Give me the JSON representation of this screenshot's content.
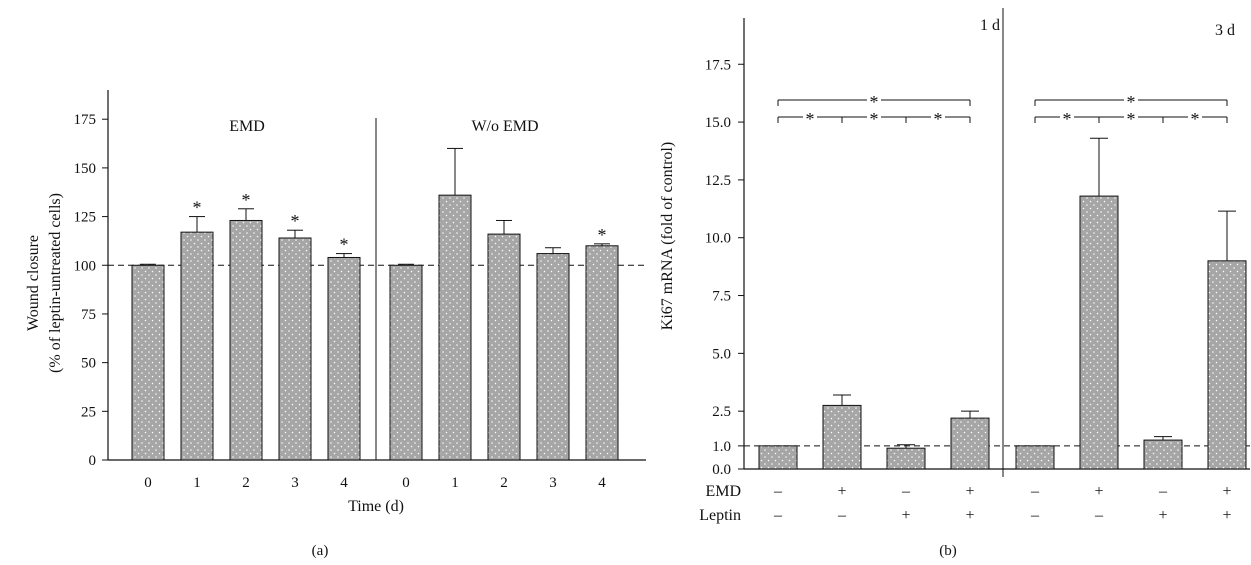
{
  "chart_data": [
    {
      "type": "bar",
      "panel_label": "(a)",
      "xlabel": "Time (d)",
      "ylabel_line1": "Wound closure",
      "ylabel_line2": "(% of leptin-untreated cells)",
      "ylim": [
        0,
        190
      ],
      "yticks": [
        0,
        25,
        50,
        75,
        100,
        125,
        150,
        175
      ],
      "reference_line": 100,
      "bar_color": "#a6a6a6",
      "groups": [
        {
          "label": "EMD",
          "categories": [
            "0",
            "1",
            "2",
            "3",
            "4"
          ],
          "values": [
            100,
            117,
            123,
            114,
            104
          ],
          "errors": [
            0,
            8,
            6,
            4,
            2
          ],
          "significant": [
            false,
            true,
            true,
            true,
            true
          ]
        },
        {
          "label": "W/o EMD",
          "categories": [
            "0",
            "1",
            "2",
            "3",
            "4"
          ],
          "values": [
            100,
            136,
            116,
            106,
            110
          ],
          "errors": [
            0,
            24,
            7,
            3,
            1
          ],
          "significant": [
            false,
            false,
            false,
            false,
            true
          ]
        }
      ],
      "significance_marker": "*"
    },
    {
      "type": "bar",
      "panel_label": "(b)",
      "ylabel": "Ki67 mRNA (fold of control)",
      "ylim": [
        0,
        19.5
      ],
      "yticks": [
        0.0,
        1.0,
        2.5,
        5.0,
        7.5,
        10.0,
        12.5,
        15.0,
        17.5
      ],
      "ytick_labels": [
        "0.0",
        "1.0",
        "2.5",
        "5.0",
        "7.5",
        "10.0",
        "12.5",
        "15.0",
        "17.5"
      ],
      "reference_line": 1.0,
      "bar_color": "#a6a6a6",
      "row_labels": [
        "EMD",
        "Leptin"
      ],
      "groups": [
        {
          "label": "1 d",
          "values": [
            1.0,
            2.75,
            0.9,
            2.2
          ],
          "errors": [
            0,
            0.45,
            0.15,
            0.3
          ],
          "emd": [
            "–",
            "+",
            "–",
            "+"
          ],
          "leptin": [
            "–",
            "–",
            "+",
            "+"
          ]
        },
        {
          "label": "3 d",
          "values": [
            1.0,
            11.8,
            1.25,
            9.0
          ],
          "errors": [
            0,
            2.5,
            0.15,
            2.15
          ],
          "emd": [
            "–",
            "+",
            "–",
            "+"
          ],
          "leptin": [
            "–",
            "–",
            "+",
            "+"
          ]
        }
      ],
      "significance_marker": "*"
    }
  ]
}
